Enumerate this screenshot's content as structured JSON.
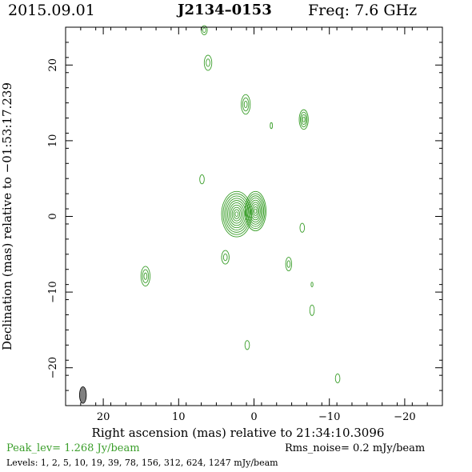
{
  "header": {
    "date": "2015.09.01",
    "source": "J2134–0153",
    "freq_label": "Freq: 7.6 GHz"
  },
  "colors": {
    "contour": "#3a9e2a",
    "text": "#000000",
    "beam": "#808080"
  },
  "footer": {
    "peak": "Peak_lev=  1.268 Jy/beam",
    "rms": "Rms_noise=  0.2 mJy/beam",
    "levels": "Levels:   1,   2,   5,  10,  19,  39,  78, 156, 312, 624, 1247 mJy/beam"
  },
  "chart_data": {
    "type": "contour",
    "xlabel": "Right ascension (mas) relative to 21:34:10.3096",
    "ylabel": "Declination (mas) relative to −01:53:17.239",
    "xlim": [
      25,
      -25
    ],
    "ylim": [
      -25,
      25
    ],
    "x_ticks": [
      20,
      10,
      0,
      -10,
      -20
    ],
    "x_tick_labels": [
      "20",
      "10",
      "0",
      "−10",
      "−20"
    ],
    "y_ticks": [
      20,
      10,
      0,
      -10,
      -20
    ],
    "y_tick_labels": [
      "20",
      "10",
      "0",
      "−10",
      "−20"
    ],
    "levels_mjy": [
      1,
      2,
      5,
      10,
      19,
      39,
      78,
      156,
      312,
      624,
      1247
    ],
    "peak_jy": 1.268,
    "rms_mjy": 0.2,
    "beam": {
      "x": 22.7,
      "y": -23.6,
      "major_mas": 2.2,
      "minor_mas": 0.9,
      "pa_deg": 0
    },
    "components": [
      {
        "x": 2.3,
        "y": 0.3,
        "rx": 2.0,
        "ry": 3.0,
        "rings": 10
      },
      {
        "x": -0.2,
        "y": 0.7,
        "rx": 1.4,
        "ry": 2.6,
        "rings": 9
      },
      {
        "x": 1.1,
        "y": 14.8,
        "rx": 0.6,
        "ry": 1.3,
        "rings": 3
      },
      {
        "x": -6.6,
        "y": 12.8,
        "rx": 0.6,
        "ry": 1.3,
        "rings": 4
      },
      {
        "x": 6.1,
        "y": 20.3,
        "rx": 0.5,
        "ry": 1.0,
        "rings": 2
      },
      {
        "x": 6.6,
        "y": 24.6,
        "rx": 0.4,
        "ry": 0.6,
        "rings": 2
      },
      {
        "x": -2.3,
        "y": 12.0,
        "rx": 0.15,
        "ry": 0.4,
        "rings": 1
      },
      {
        "x": 6.9,
        "y": 4.9,
        "rx": 0.3,
        "ry": 0.6,
        "rings": 1
      },
      {
        "x": -6.4,
        "y": -1.5,
        "rx": 0.3,
        "ry": 0.6,
        "rings": 1
      },
      {
        "x": 3.8,
        "y": -5.4,
        "rx": 0.5,
        "ry": 0.9,
        "rings": 2
      },
      {
        "x": -4.6,
        "y": -6.3,
        "rx": 0.4,
        "ry": 0.9,
        "rings": 2
      },
      {
        "x": 14.4,
        "y": -7.9,
        "rx": 0.6,
        "ry": 1.3,
        "rings": 3
      },
      {
        "x": -7.7,
        "y": -9.0,
        "rx": 0.12,
        "ry": 0.3,
        "rings": 1
      },
      {
        "x": -7.7,
        "y": -12.4,
        "rx": 0.3,
        "ry": 0.7,
        "rings": 1
      },
      {
        "x": 0.9,
        "y": -17.0,
        "rx": 0.3,
        "ry": 0.6,
        "rings": 1
      },
      {
        "x": -11.1,
        "y": -21.4,
        "rx": 0.3,
        "ry": 0.6,
        "rings": 1
      }
    ]
  }
}
